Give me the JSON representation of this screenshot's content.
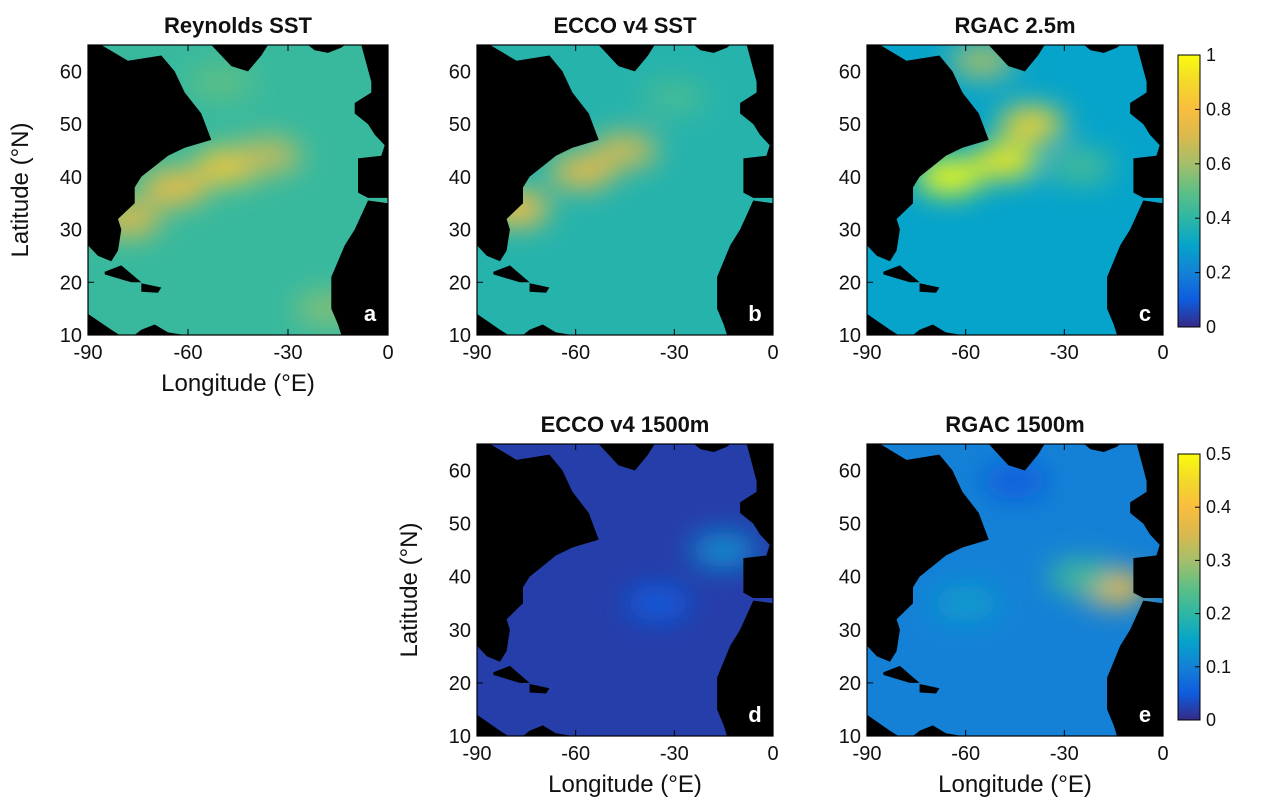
{
  "chart_data": {
    "type": "heatmap",
    "panels": [
      {
        "id": "reynolds-sst",
        "panel_label": "a",
        "title": "Reynolds SST",
        "xlabel": "Longitude (°E)",
        "ylabel": "Latitude (°N)",
        "xlim": [
          -90,
          0
        ],
        "ylim": [
          10,
          65
        ],
        "xticks": [
          -90,
          -60,
          -30,
          0
        ],
        "yticks": [
          10,
          20,
          30,
          40,
          50,
          60
        ],
        "colorbar": "cb-top",
        "land_color": "#000000",
        "background_value": 0.42,
        "features": [
          {
            "description": "Gulf Stream / North Atlantic Current maximum",
            "lon": -48,
            "lat": 42,
            "value": 0.84
          },
          {
            "lon": -64,
            "lat": 38,
            "value": 0.78
          },
          {
            "lon": -36,
            "lat": 44,
            "value": 0.66
          },
          {
            "lon": -78,
            "lat": 32,
            "value": 0.72
          },
          {
            "lon": -18,
            "lat": 15,
            "value": 0.55
          },
          {
            "lon": -50,
            "lat": 58,
            "value": 0.5
          }
        ]
      },
      {
        "id": "ecco-sst",
        "panel_label": "b",
        "title": "ECCO v4 SST",
        "xlabel": "",
        "ylabel": "",
        "xlim": [
          -90,
          0
        ],
        "ylim": [
          10,
          65
        ],
        "xticks": [
          -90,
          -60,
          -30,
          0
        ],
        "yticks": [
          10,
          20,
          30,
          40,
          50,
          60
        ],
        "colorbar": "cb-top",
        "land_color": "#000000",
        "no_data_color": "#ffffff",
        "background_value": 0.38,
        "features": [
          {
            "lon": -58,
            "lat": 41,
            "value": 0.74
          },
          {
            "lon": -45,
            "lat": 45,
            "value": 0.68
          },
          {
            "lon": -78,
            "lat": 34,
            "value": 0.8
          },
          {
            "lon": -30,
            "lat": 55,
            "value": 0.45
          }
        ]
      },
      {
        "id": "rgac-2.5m",
        "panel_label": "c",
        "title": "RGAC 2.5m",
        "xlabel": "",
        "ylabel": "",
        "xlim": [
          -90,
          0
        ],
        "ylim": [
          10,
          65
        ],
        "xticks": [
          -90,
          -60,
          -30,
          0
        ],
        "yticks": [
          10,
          20,
          30,
          40,
          50,
          60
        ],
        "colorbar": "cb-top",
        "land_color": "#000000",
        "no_data_color": "#ffffff",
        "background_value": 0.3,
        "features": [
          {
            "lon": -65,
            "lat": 40,
            "value": 1.0
          },
          {
            "lon": -48,
            "lat": 43,
            "value": 0.95
          },
          {
            "lon": -40,
            "lat": 50,
            "value": 0.88
          },
          {
            "lon": -25,
            "lat": 42,
            "value": 0.45
          },
          {
            "lon": -55,
            "lat": 62,
            "value": 0.6
          }
        ]
      },
      {
        "id": "ecco-1500m",
        "panel_label": "d",
        "title": "ECCO v4 1500m",
        "xlabel": "Longitude (°E)",
        "ylabel": "Latitude (°N)",
        "xlim": [
          -90,
          0
        ],
        "ylim": [
          10,
          65
        ],
        "xticks": [
          -90,
          -60,
          -30,
          0
        ],
        "yticks": [
          10,
          20,
          30,
          40,
          50,
          60
        ],
        "colorbar": "cb-bottom",
        "land_color": "#000000",
        "no_data_color": "#ffffff",
        "background_value": 0.02,
        "features": [
          {
            "lon": -35,
            "lat": 35,
            "value": 0.05
          },
          {
            "lon": -15,
            "lat": 45,
            "value": 0.12
          }
        ]
      },
      {
        "id": "rgac-1500m",
        "panel_label": "e",
        "title": "RGAC 1500m",
        "xlabel": "Longitude (°E)",
        "ylabel": "",
        "xlim": [
          -90,
          0
        ],
        "ylim": [
          10,
          65
        ],
        "xticks": [
          -90,
          -60,
          -30,
          0
        ],
        "yticks": [
          10,
          20,
          30,
          40,
          50,
          60
        ],
        "colorbar": "cb-bottom",
        "land_color": "#000000",
        "no_data_color": "#ffffff",
        "background_value": 0.1,
        "features": [
          {
            "description": "Mediterranean outflow maximum",
            "lon": -15,
            "lat": 38,
            "value": 0.4
          },
          {
            "lon": -25,
            "lat": 40,
            "value": 0.22
          },
          {
            "lon": -60,
            "lat": 35,
            "value": 0.14
          },
          {
            "lon": -45,
            "lat": 58,
            "value": 0.05
          }
        ]
      }
    ],
    "colorbars": [
      {
        "id": "cb-top",
        "range": [
          0,
          1
        ],
        "ticks": [
          "1",
          "0.8",
          "0.6",
          "0.4",
          "0.2",
          "0"
        ],
        "colormap": "parula"
      },
      {
        "id": "cb-bottom",
        "range": [
          0,
          0.5
        ],
        "ticks": [
          "0.5",
          "0.4",
          "0.3",
          "0.2",
          "0.1",
          "0"
        ],
        "colormap": "parula"
      }
    ]
  }
}
